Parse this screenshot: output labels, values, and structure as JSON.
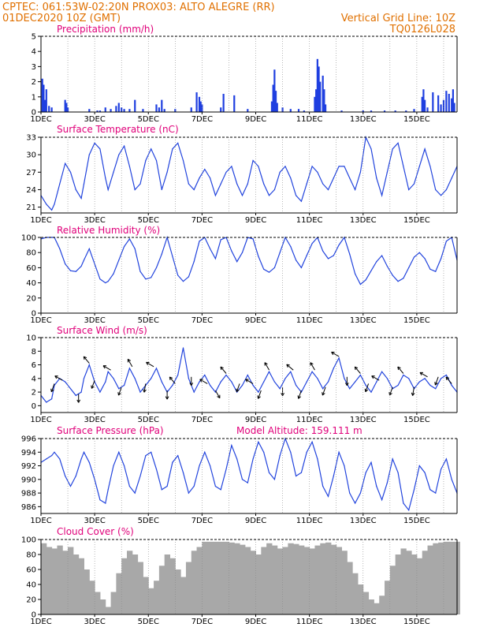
{
  "header": {
    "station": "CPTEC:   061:53W-02:20N   PROX03: ALTO ALEGRE (RR)",
    "date": "01DEC2020 10Z (GMT)",
    "grid_note": "Vertical Grid Line: 10Z",
    "code": "TQ0126L028"
  },
  "colors": {
    "header": "#e07000",
    "title": "#e0007a",
    "line": "#2244dd",
    "bar": "#1f3fe0",
    "cloud": "#a8a8a8"
  },
  "x_ticks": [
    "1DEC",
    "3DEC",
    "5DEC",
    "7DEC",
    "9DEC",
    "11DEC",
    "13DEC",
    "15DEC"
  ],
  "panel_titles": {
    "precip": "Precipitation (mm/h)",
    "temp": "Surface Temperature (nC)",
    "rh": "Relative Humidity (%)",
    "wind": "Surface Wind (m/s)",
    "pres": "Surface Pressure (hPa)",
    "cloud": "Cloud Cover (%)"
  },
  "model_altitude": "Model Altitude: 159.111 m",
  "chart_data": [
    {
      "id": "precip",
      "type": "bar",
      "xlim": [
        0,
        15.5
      ],
      "ylim": [
        0,
        5
      ],
      "yticks": [
        0,
        1,
        2,
        3,
        4,
        5
      ],
      "x": [
        0.05,
        0.1,
        0.15,
        0.2,
        0.3,
        0.4,
        0.9,
        0.95,
        1.0,
        1.8,
        2.1,
        2.2,
        2.4,
        2.6,
        2.8,
        2.9,
        3.0,
        3.1,
        3.3,
        3.5,
        3.8,
        4.3,
        4.4,
        4.5,
        4.6,
        5.0,
        5.6,
        5.8,
        5.9,
        5.95,
        6.0,
        6.7,
        6.8,
        7.2,
        7.7,
        8.6,
        8.65,
        8.7,
        8.75,
        8.8,
        9.0,
        9.3,
        9.6,
        9.8,
        10.2,
        10.25,
        10.3,
        10.35,
        10.4,
        10.5,
        10.55,
        10.6,
        11.2,
        12.0,
        12.3,
        12.8,
        13.2,
        13.6,
        13.9,
        14.2,
        14.25,
        14.3,
        14.4,
        14.6,
        14.8,
        14.9,
        15.0,
        15.1,
        15.2,
        15.3,
        15.35,
        15.4
      ],
      "values": [
        2.2,
        1.8,
        0.8,
        1.5,
        0.4,
        0.3,
        0.8,
        0.6,
        0.3,
        0.2,
        0.1,
        0.1,
        0.3,
        0.2,
        0.4,
        0.6,
        0.3,
        0.2,
        0.2,
        0.8,
        0.2,
        0.5,
        0.3,
        0.8,
        0.2,
        0.2,
        0.3,
        1.3,
        1.0,
        0.7,
        0.5,
        0.3,
        1.2,
        1.1,
        0.2,
        0.7,
        1.8,
        2.8,
        1.4,
        0.6,
        0.3,
        0.2,
        0.2,
        0.1,
        1.0,
        1.5,
        3.5,
        3.0,
        2.0,
        2.4,
        1.5,
        0.5,
        0.1,
        0.1,
        0.1,
        0.1,
        0.1,
        0.1,
        0.2,
        1.0,
        1.5,
        0.8,
        0.3,
        1.3,
        1.1,
        0.5,
        0.8,
        1.4,
        1.2,
        0.9,
        1.5,
        0.6
      ]
    },
    {
      "id": "temp",
      "type": "line",
      "xlim": [
        0,
        15.5
      ],
      "ylim": [
        20,
        33
      ],
      "yticks": [
        21,
        24,
        27,
        30,
        33
      ],
      "x": [
        0,
        0.2,
        0.4,
        0.5,
        0.7,
        0.9,
        1.1,
        1.3,
        1.5,
        1.6,
        1.8,
        2.0,
        2.2,
        2.4,
        2.5,
        2.7,
        2.9,
        3.1,
        3.3,
        3.5,
        3.7,
        3.9,
        4.1,
        4.3,
        4.5,
        4.7,
        4.9,
        5.1,
        5.3,
        5.5,
        5.7,
        5.9,
        6.1,
        6.3,
        6.5,
        6.7,
        6.9,
        7.1,
        7.3,
        7.5,
        7.7,
        7.9,
        8.1,
        8.3,
        8.5,
        8.7,
        8.9,
        9.1,
        9.3,
        9.5,
        9.7,
        9.9,
        10.1,
        10.3,
        10.5,
        10.7,
        10.9,
        11.1,
        11.3,
        11.5,
        11.7,
        11.9,
        12.1,
        12.3,
        12.5,
        12.7,
        12.9,
        13.1,
        13.3,
        13.5,
        13.7,
        13.9,
        14.1,
        14.3,
        14.5,
        14.7,
        14.9,
        15.1,
        15.3,
        15.5
      ],
      "values": [
        23,
        21.5,
        20.5,
        21.5,
        25,
        28.5,
        27,
        24,
        22.5,
        25,
        30,
        32,
        31,
        26,
        24,
        27,
        30,
        31.5,
        28,
        24,
        25,
        29,
        31,
        29,
        24,
        27,
        31,
        32,
        29,
        25,
        24,
        26,
        27.5,
        26,
        23,
        25,
        27,
        28,
        25,
        23,
        25,
        29,
        28,
        25,
        23,
        24,
        27,
        28,
        26,
        23,
        22,
        25,
        28,
        27,
        25,
        24,
        26,
        28,
        28,
        26,
        24,
        27,
        33,
        31,
        26,
        23,
        27,
        31,
        32,
        28,
        24,
        25,
        28,
        31,
        28,
        24,
        23,
        24,
        26,
        28
      ]
    },
    {
      "id": "rh",
      "type": "line",
      "xlim": [
        0,
        15.5
      ],
      "ylim": [
        0,
        100
      ],
      "yticks": [
        0,
        20,
        40,
        60,
        80,
        100
      ],
      "x": [
        0,
        0.2,
        0.4,
        0.5,
        0.7,
        0.9,
        1.1,
        1.3,
        1.5,
        1.6,
        1.8,
        2.0,
        2.2,
        2.4,
        2.5,
        2.7,
        2.9,
        3.1,
        3.3,
        3.5,
        3.7,
        3.9,
        4.1,
        4.3,
        4.5,
        4.7,
        4.9,
        5.1,
        5.3,
        5.5,
        5.7,
        5.9,
        6.1,
        6.3,
        6.5,
        6.7,
        6.9,
        7.1,
        7.3,
        7.5,
        7.7,
        7.9,
        8.1,
        8.3,
        8.5,
        8.7,
        8.9,
        9.1,
        9.3,
        9.5,
        9.7,
        9.9,
        10.1,
        10.3,
        10.5,
        10.7,
        10.9,
        11.1,
        11.3,
        11.5,
        11.7,
        11.9,
        12.1,
        12.3,
        12.5,
        12.7,
        12.9,
        13.1,
        13.3,
        13.5,
        13.7,
        13.9,
        14.1,
        14.3,
        14.5,
        14.7,
        14.9,
        15.1,
        15.3,
        15.5
      ],
      "values": [
        98,
        100,
        100,
        100,
        85,
        65,
        56,
        55,
        62,
        70,
        85,
        65,
        45,
        40,
        42,
        52,
        70,
        88,
        98,
        85,
        55,
        45,
        47,
        60,
        78,
        100,
        75,
        50,
        42,
        48,
        68,
        95,
        100,
        85,
        72,
        97,
        100,
        82,
        68,
        80,
        100,
        98,
        75,
        58,
        54,
        60,
        80,
        100,
        88,
        70,
        60,
        76,
        92,
        100,
        82,
        72,
        76,
        90,
        100,
        78,
        52,
        38,
        44,
        56,
        68,
        76,
        62,
        50,
        42,
        46,
        60,
        74,
        80,
        72,
        58,
        55,
        72,
        95,
        100,
        70
      ]
    },
    {
      "id": "wind",
      "type": "line",
      "xlim": [
        0,
        15.5
      ],
      "ylim": [
        -1,
        10
      ],
      "yticks": [
        0,
        2,
        4,
        6,
        8,
        10
      ],
      "x": [
        0,
        0.2,
        0.4,
        0.5,
        0.7,
        0.9,
        1.1,
        1.3,
        1.5,
        1.6,
        1.8,
        2.0,
        2.2,
        2.4,
        2.5,
        2.7,
        2.9,
        3.1,
        3.3,
        3.5,
        3.7,
        3.9,
        4.1,
        4.3,
        4.5,
        4.7,
        4.9,
        5.1,
        5.3,
        5.5,
        5.7,
        5.9,
        6.1,
        6.3,
        6.5,
        6.7,
        6.9,
        7.1,
        7.3,
        7.5,
        7.7,
        7.9,
        8.1,
        8.3,
        8.5,
        8.7,
        8.9,
        9.1,
        9.3,
        9.5,
        9.7,
        9.9,
        10.1,
        10.3,
        10.5,
        10.7,
        10.9,
        11.1,
        11.3,
        11.5,
        11.7,
        11.9,
        12.1,
        12.3,
        12.5,
        12.7,
        12.9,
        13.1,
        13.3,
        13.5,
        13.7,
        13.9,
        14.1,
        14.3,
        14.5,
        14.7,
        14.9,
        15.1,
        15.3,
        15.5
      ],
      "values": [
        1.5,
        0.5,
        1.0,
        3.0,
        4.0,
        3.5,
        2.5,
        1.5,
        2.0,
        4.0,
        6.0,
        3.5,
        2.0,
        3.5,
        5.0,
        4.0,
        2.5,
        3.0,
        5.5,
        4.0,
        2.0,
        3.0,
        4.0,
        5.5,
        3.5,
        2.0,
        3.0,
        4.5,
        8.5,
        4.0,
        2.0,
        3.5,
        4.5,
        3.0,
        2.0,
        3.5,
        4.5,
        3.5,
        2.0,
        3.0,
        4.5,
        3.0,
        2.0,
        3.5,
        5.0,
        3.5,
        2.5,
        4.0,
        5.0,
        3.0,
        2.0,
        3.5,
        5.0,
        4.0,
        2.5,
        3.5,
        5.5,
        7.0,
        4.0,
        2.5,
        3.5,
        4.5,
        3.0,
        2.0,
        3.5,
        5.0,
        4.0,
        2.5,
        3.0,
        4.5,
        4.0,
        2.5,
        3.5,
        4.0,
        3.0,
        2.5,
        4.0,
        4.5,
        3.0,
        2.0
      ],
      "arrows": [
        {
          "x": 0.5,
          "dir": 200
        },
        {
          "x": 0.8,
          "dir": 300
        },
        {
          "x": 1.4,
          "dir": 180
        },
        {
          "x": 1.8,
          "dir": 320
        },
        {
          "x": 2.0,
          "dir": 200
        },
        {
          "x": 2.6,
          "dir": 300
        },
        {
          "x": 3.0,
          "dir": 200
        },
        {
          "x": 3.4,
          "dir": 330
        },
        {
          "x": 3.9,
          "dir": 190
        },
        {
          "x": 4.2,
          "dir": 300
        },
        {
          "x": 4.7,
          "dir": 180
        },
        {
          "x": 5.0,
          "dir": 320
        },
        {
          "x": 5.6,
          "dir": 180
        },
        {
          "x": 6.2,
          "dir": 300
        },
        {
          "x": 6.5,
          "dir": 150
        },
        {
          "x": 6.9,
          "dir": 320
        },
        {
          "x": 7.4,
          "dir": 200
        },
        {
          "x": 7.9,
          "dir": 300
        },
        {
          "x": 8.2,
          "dir": 200
        },
        {
          "x": 8.5,
          "dir": 330
        },
        {
          "x": 9.0,
          "dir": 180
        },
        {
          "x": 9.4,
          "dir": 310
        },
        {
          "x": 9.7,
          "dir": 200
        },
        {
          "x": 10.2,
          "dir": 330
        },
        {
          "x": 10.6,
          "dir": 200
        },
        {
          "x": 11.1,
          "dir": 300
        },
        {
          "x": 11.4,
          "dir": 180
        },
        {
          "x": 11.9,
          "dir": 320
        },
        {
          "x": 12.2,
          "dir": 200
        },
        {
          "x": 12.6,
          "dir": 300
        },
        {
          "x": 13.1,
          "dir": 200
        },
        {
          "x": 13.5,
          "dir": 320
        },
        {
          "x": 13.9,
          "dir": 190
        },
        {
          "x": 14.4,
          "dir": 300
        },
        {
          "x": 14.8,
          "dir": 200
        },
        {
          "x": 15.3,
          "dir": 320
        }
      ]
    },
    {
      "id": "pres",
      "type": "line",
      "xlim": [
        0,
        15.5
      ],
      "ylim": [
        985,
        996
      ],
      "yticks": [
        986,
        988,
        990,
        992,
        994,
        996
      ],
      "x": [
        0,
        0.2,
        0.4,
        0.5,
        0.7,
        0.9,
        1.1,
        1.3,
        1.5,
        1.6,
        1.8,
        2.0,
        2.2,
        2.4,
        2.5,
        2.7,
        2.9,
        3.1,
        3.3,
        3.5,
        3.7,
        3.9,
        4.1,
        4.3,
        4.5,
        4.7,
        4.9,
        5.1,
        5.3,
        5.5,
        5.7,
        5.9,
        6.1,
        6.3,
        6.5,
        6.7,
        6.9,
        7.1,
        7.3,
        7.5,
        7.7,
        7.9,
        8.1,
        8.3,
        8.5,
        8.7,
        8.9,
        9.1,
        9.3,
        9.5,
        9.7,
        9.9,
        10.1,
        10.3,
        10.5,
        10.7,
        10.9,
        11.1,
        11.3,
        11.5,
        11.7,
        11.9,
        12.1,
        12.3,
        12.5,
        12.7,
        12.9,
        13.1,
        13.3,
        13.5,
        13.7,
        13.9,
        14.1,
        14.3,
        14.5,
        14.7,
        14.9,
        15.1,
        15.3,
        15.5
      ],
      "values": [
        992.5,
        993,
        993.5,
        994,
        993,
        990.5,
        989,
        990.5,
        993,
        994,
        992.5,
        990,
        987,
        986.5,
        988.5,
        992,
        994,
        992,
        989,
        988,
        990.5,
        993.5,
        994,
        991.5,
        988.5,
        989,
        992.5,
        993.5,
        991,
        988,
        989,
        992,
        994,
        992,
        989,
        988.5,
        991.5,
        995,
        993,
        990,
        989.5,
        993,
        995.5,
        994,
        991,
        990,
        993.5,
        996,
        994,
        990.5,
        991,
        994,
        995.5,
        993,
        989,
        987.5,
        990.5,
        994,
        992,
        988,
        986.5,
        988,
        991,
        992.5,
        989,
        987,
        989.5,
        993,
        991,
        986.5,
        985.5,
        988.5,
        992,
        991,
        988.5,
        988,
        991.5,
        993,
        990,
        988
      ]
    },
    {
      "id": "cloud",
      "type": "bar",
      "xlim": [
        0,
        15.5
      ],
      "ylim": [
        0,
        100
      ],
      "yticks": [
        0,
        20,
        40,
        60,
        80,
        100
      ],
      "x": [
        0,
        0.2,
        0.4,
        0.6,
        0.8,
        1.0,
        1.2,
        1.4,
        1.6,
        1.8,
        2.0,
        2.2,
        2.4,
        2.6,
        2.8,
        3.0,
        3.2,
        3.4,
        3.6,
        3.8,
        4.0,
        4.2,
        4.4,
        4.6,
        4.8,
        5.0,
        5.2,
        5.4,
        5.6,
        5.8,
        6.0,
        6.2,
        6.4,
        6.6,
        6.8,
        7.0,
        7.2,
        7.4,
        7.6,
        7.8,
        8.0,
        8.2,
        8.4,
        8.6,
        8.8,
        9.0,
        9.2,
        9.4,
        9.6,
        9.8,
        10.0,
        10.2,
        10.4,
        10.6,
        10.8,
        11.0,
        11.2,
        11.4,
        11.6,
        11.8,
        12.0,
        12.2,
        12.4,
        12.6,
        12.8,
        13.0,
        13.2,
        13.4,
        13.6,
        13.8,
        14.0,
        14.2,
        14.4,
        14.6,
        14.8,
        15.0,
        15.2,
        15.4
      ],
      "values": [
        95,
        90,
        88,
        92,
        85,
        90,
        80,
        75,
        60,
        45,
        30,
        20,
        10,
        30,
        55,
        75,
        85,
        80,
        70,
        50,
        35,
        45,
        65,
        80,
        75,
        60,
        50,
        70,
        85,
        90,
        97,
        97,
        97,
        97,
        97,
        96,
        95,
        93,
        90,
        85,
        80,
        90,
        95,
        92,
        88,
        90,
        95,
        94,
        92,
        90,
        88,
        92,
        95,
        96,
        93,
        90,
        85,
        70,
        55,
        40,
        30,
        20,
        15,
        25,
        45,
        65,
        80,
        88,
        85,
        80,
        75,
        85,
        92,
        95,
        96,
        97,
        97,
        97
      ]
    }
  ]
}
